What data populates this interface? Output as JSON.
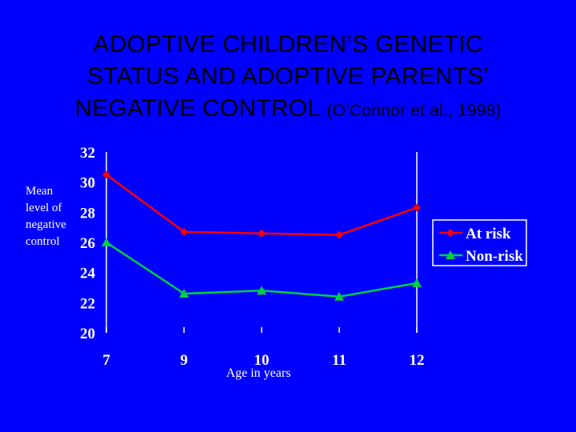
{
  "title": {
    "line1": "ADOPTIVE CHILDREN’S GENETIC",
    "line2": "STATUS AND ADOPTIVE PARENTS’",
    "line3": "NEGATIVE CONTROL",
    "citation": "(O’Connor et al., 1998)"
  },
  "colors": {
    "background": "#0000FF",
    "at_risk": "#FF0000",
    "non_risk": "#00D040",
    "axis": "#FFFFFF"
  },
  "chart_data": {
    "type": "line",
    "title": "ADOPTIVE CHILDREN’S GENETIC STATUS AND ADOPTIVE PARENTS’ NEGATIVE CONTROL (O’Connor et al., 1998)",
    "categories": [
      "7",
      "9",
      "10",
      "11",
      "12"
    ],
    "xlabel": "Age in years",
    "ylabel_lines": [
      "Mean",
      "level of",
      "negative",
      "control"
    ],
    "ylim": [
      20,
      32
    ],
    "yticks": [
      20,
      22,
      24,
      26,
      28,
      30,
      32
    ],
    "series": [
      {
        "name": "At risk",
        "marker": "diamond",
        "values": [
          30.5,
          26.7,
          26.6,
          26.5,
          28.3
        ]
      },
      {
        "name": "Non-risk",
        "marker": "triangle",
        "values": [
          26.0,
          22.6,
          22.8,
          22.4,
          23.3
        ]
      }
    ],
    "legend": "right"
  }
}
